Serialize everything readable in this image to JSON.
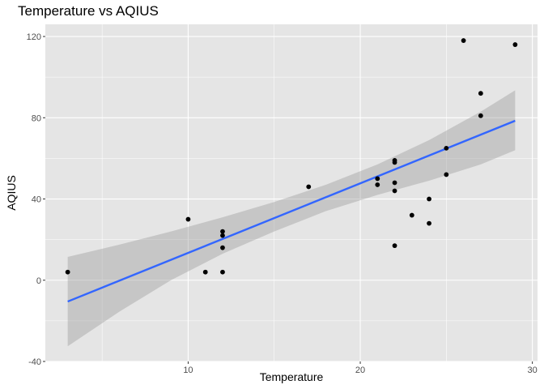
{
  "chart_data": {
    "type": "scatter",
    "title": "Temperature vs AQIUS",
    "xlabel": "Temperature",
    "ylabel": "AQIUS",
    "xlim": [
      1.7,
      30.3
    ],
    "ylim": [
      -40,
      126
    ],
    "x_ticks": [
      10,
      20,
      30
    ],
    "y_ticks": [
      -40,
      0,
      40,
      80,
      120
    ],
    "grid": true,
    "legend": "none",
    "colors": {
      "panel": "#e5e5e5",
      "grid": "#ffffff",
      "points": "#000000",
      "fit_line": "#3366ff",
      "ribbon": "#999999"
    },
    "points": [
      {
        "x": 3,
        "y": 4
      },
      {
        "x": 10,
        "y": 30
      },
      {
        "x": 11,
        "y": 4
      },
      {
        "x": 12,
        "y": 24
      },
      {
        "x": 12,
        "y": 22
      },
      {
        "x": 12,
        "y": 16
      },
      {
        "x": 12,
        "y": 4
      },
      {
        "x": 17,
        "y": 46
      },
      {
        "x": 21,
        "y": 50
      },
      {
        "x": 21,
        "y": 47
      },
      {
        "x": 22,
        "y": 59
      },
      {
        "x": 22,
        "y": 58
      },
      {
        "x": 22,
        "y": 48
      },
      {
        "x": 22,
        "y": 44
      },
      {
        "x": 22,
        "y": 17
      },
      {
        "x": 23,
        "y": 32
      },
      {
        "x": 24,
        "y": 40
      },
      {
        "x": 24,
        "y": 28
      },
      {
        "x": 25,
        "y": 65
      },
      {
        "x": 25,
        "y": 52
      },
      {
        "x": 26,
        "y": 118
      },
      {
        "x": 27,
        "y": 92
      },
      {
        "x": 27,
        "y": 81
      },
      {
        "x": 29,
        "y": 116
      }
    ],
    "fit_line": [
      {
        "x": 3,
        "y": -10.5
      },
      {
        "x": 29,
        "y": 78.5
      }
    ],
    "confidence_band": [
      {
        "x": 3,
        "lower": -32.5,
        "upper": 11.5
      },
      {
        "x": 6,
        "lower": -15.5,
        "upper": 17.5
      },
      {
        "x": 9,
        "lower": 0,
        "upper": 24
      },
      {
        "x": 12,
        "lower": 13,
        "upper": 31
      },
      {
        "x": 15,
        "lower": 24,
        "upper": 38.5
      },
      {
        "x": 18,
        "lower": 34,
        "upper": 47
      },
      {
        "x": 21,
        "lower": 42,
        "upper": 57
      },
      {
        "x": 24,
        "lower": 49,
        "upper": 69
      },
      {
        "x": 27,
        "lower": 57,
        "upper": 83
      },
      {
        "x": 29,
        "lower": 64,
        "upper": 93.5
      }
    ]
  }
}
